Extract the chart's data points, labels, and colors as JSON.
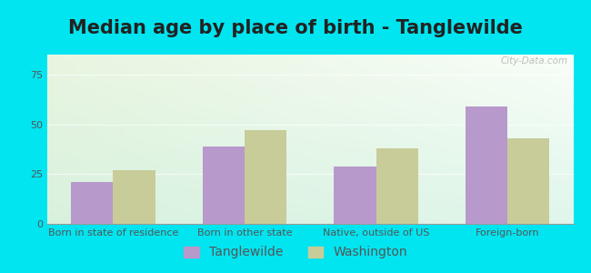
{
  "title": "Median age by place of birth - Tanglewilde",
  "categories": [
    "Born in state of residence",
    "Born in other state",
    "Native, outside of US",
    "Foreign-born"
  ],
  "tanglewilde_values": [
    21,
    39,
    29,
    59
  ],
  "washington_values": [
    27,
    47,
    38,
    43
  ],
  "tanglewilde_color": "#b899cc",
  "washington_color": "#c8cc99",
  "ylim": [
    0,
    85
  ],
  "yticks": [
    0,
    25,
    50,
    75
  ],
  "background_outer": "#00e5f0",
  "background_inner_topleft": "#e8f5e0",
  "background_inner_topright": "#f8fef8",
  "background_inner_bottom": "#c8eedd",
  "legend_labels": [
    "Tanglewilde",
    "Washington"
  ],
  "bar_width": 0.32,
  "title_fontsize": 15,
  "tick_fontsize": 8,
  "legend_fontsize": 10,
  "title_color": "#222222",
  "tick_color": "#555555"
}
